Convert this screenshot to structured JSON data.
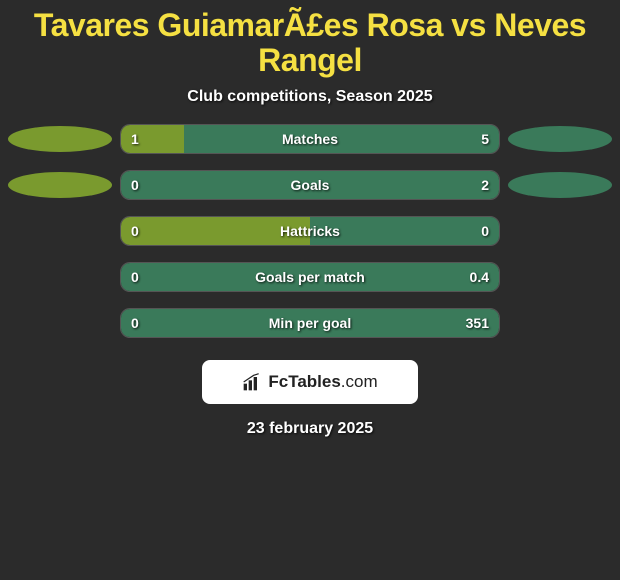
{
  "title": "Tavares GuiamarÃ£es Rosa vs Neves Rangel",
  "subtitle": "Club competitions, Season 2025",
  "date": "23 february 2025",
  "colors": {
    "background": "#2b2b2b",
    "title_color": "#f5e042",
    "text_color": "#ffffff",
    "left_color": "#7a9a2e",
    "right_color": "#3a7a5a",
    "bar_border": "#555555"
  },
  "stats": [
    {
      "label": "Matches",
      "left_value": "1",
      "right_value": "5",
      "left_pct": 16.67,
      "show_left_marker": true,
      "show_right_marker": true
    },
    {
      "label": "Goals",
      "left_value": "0",
      "right_value": "2",
      "left_pct": 0,
      "show_left_marker": true,
      "show_right_marker": true
    },
    {
      "label": "Hattricks",
      "left_value": "0",
      "right_value": "0",
      "left_pct": 50,
      "show_left_marker": false,
      "show_right_marker": false
    },
    {
      "label": "Goals per match",
      "left_value": "0",
      "right_value": "0.4",
      "left_pct": 0,
      "show_left_marker": false,
      "show_right_marker": false
    },
    {
      "label": "Min per goal",
      "left_value": "0",
      "right_value": "351",
      "left_pct": 0,
      "show_left_marker": false,
      "show_right_marker": false
    }
  ],
  "logo": {
    "text1": "Fc",
    "text2": "Tables",
    "text3": ".com"
  }
}
